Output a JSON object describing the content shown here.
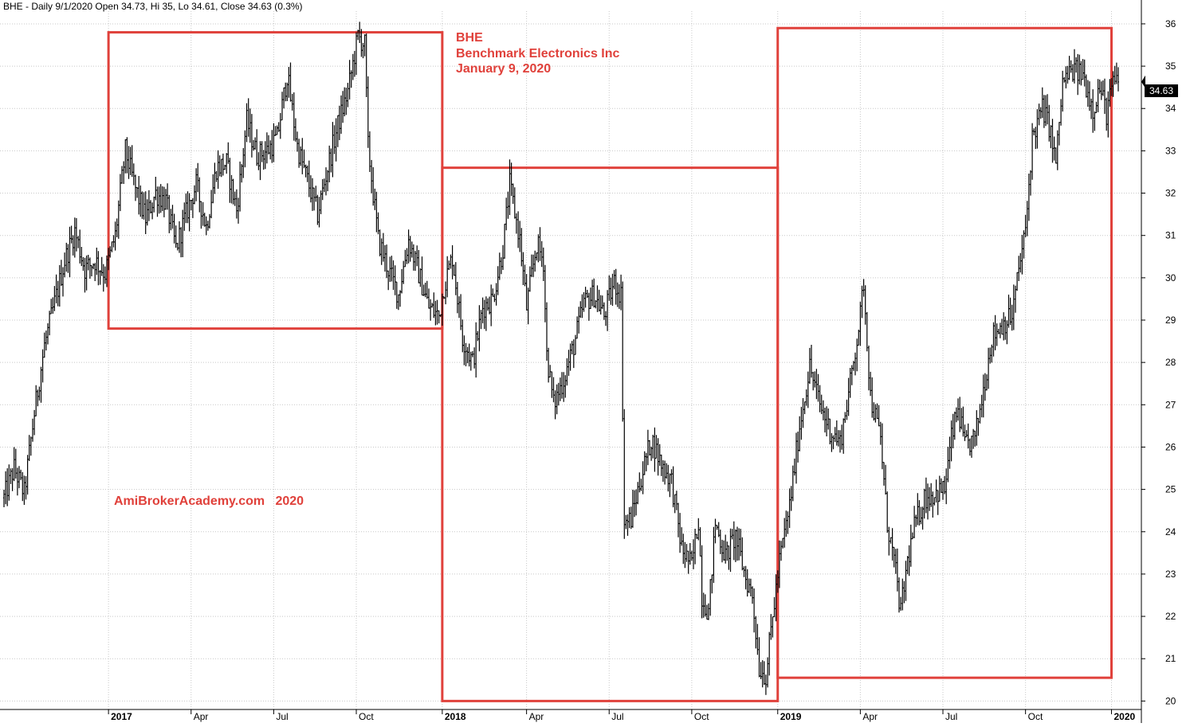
{
  "header": {
    "text": "BHE - Daily 9/1/2020 Open 34.73, Hi 35, Lo 34.61, Close 34.63 (0.3%)"
  },
  "annotation": {
    "symbol": "BHE",
    "company": "Benchmark Electronics Inc",
    "date": "January 9, 2020",
    "watermark": "AmiBrokerAcademy.com   2020"
  },
  "last_price_label": "34.63",
  "colors": {
    "price": "#000000",
    "box": "#e0413b",
    "grid": "#c8c8c8",
    "annotation": "#e0413b"
  },
  "chart_data": {
    "type": "line",
    "title": "BHE",
    "ylim": [
      19.8,
      36.3
    ],
    "yticks": [
      20,
      21,
      22,
      23,
      24,
      25,
      26,
      27,
      28,
      29,
      30,
      31,
      32,
      33,
      34,
      35,
      36
    ],
    "y_axis_side": "right",
    "xticks": [
      {
        "label": "2017",
        "idx": 132,
        "bold": true
      },
      {
        "label": "Apr",
        "idx": 181
      },
      {
        "label": "Jul",
        "idx": 230
      },
      {
        "label": "Oct",
        "idx": 279
      },
      {
        "label": "2018",
        "idx": 330,
        "bold": true
      },
      {
        "label": "Apr",
        "idx": 380
      },
      {
        "label": "Jul",
        "idx": 429
      },
      {
        "label": "Oct",
        "idx": 478
      },
      {
        "label": "2019",
        "idx": 529,
        "bold": true
      },
      {
        "label": "Apr",
        "idx": 578
      },
      {
        "label": "Jul",
        "idx": 627
      },
      {
        "label": "Oct",
        "idx": 676
      },
      {
        "label": "2020",
        "idx": 727,
        "bold": true
      }
    ],
    "x_range": [
      70,
      740
    ],
    "series": [
      {
        "anchors": [
          [
            70,
            24.8
          ],
          [
            76,
            25.5
          ],
          [
            82,
            24.9
          ],
          [
            88,
            26.8
          ],
          [
            94,
            28.4
          ],
          [
            100,
            29.4
          ],
          [
            106,
            30.4
          ],
          [
            112,
            31.1
          ],
          [
            118,
            30.2
          ],
          [
            124,
            30.4
          ],
          [
            130,
            30.1
          ],
          [
            136,
            31.0
          ],
          [
            142,
            33.0
          ],
          [
            148,
            32.1
          ],
          [
            154,
            31.4
          ],
          [
            160,
            32.0
          ],
          [
            166,
            31.8
          ],
          [
            172,
            30.7
          ],
          [
            178,
            31.5
          ],
          [
            184,
            32.2
          ],
          [
            190,
            31.2
          ],
          [
            196,
            32.6
          ],
          [
            202,
            32.7
          ],
          [
            208,
            31.6
          ],
          [
            214,
            33.7
          ],
          [
            220,
            32.9
          ],
          [
            226,
            33.0
          ],
          [
            232,
            33.3
          ],
          [
            238,
            34.8
          ],
          [
            244,
            33.1
          ],
          [
            250,
            32.3
          ],
          [
            256,
            31.5
          ],
          [
            262,
            32.6
          ],
          [
            268,
            33.6
          ],
          [
            274,
            34.4
          ],
          [
            280,
            35.7
          ],
          [
            284,
            35.5
          ],
          [
            286,
            33.1
          ],
          [
            292,
            30.9
          ],
          [
            298,
            30.2
          ],
          [
            304,
            29.6
          ],
          [
            310,
            30.9
          ],
          [
            316,
            30.1
          ],
          [
            322,
            29.3
          ],
          [
            328,
            29.1
          ],
          [
            331,
            29.8
          ],
          [
            336,
            30.5
          ],
          [
            342,
            28.6
          ],
          [
            348,
            28.0
          ],
          [
            354,
            29.3
          ],
          [
            360,
            29.5
          ],
          [
            366,
            30.7
          ],
          [
            370,
            32.2
          ],
          [
            376,
            30.9
          ],
          [
            380,
            29.3
          ],
          [
            386,
            30.8
          ],
          [
            390,
            30.4
          ],
          [
            392,
            28.2
          ],
          [
            396,
            27.0
          ],
          [
            402,
            27.6
          ],
          [
            408,
            28.4
          ],
          [
            414,
            29.4
          ],
          [
            420,
            29.6
          ],
          [
            426,
            29.1
          ],
          [
            432,
            29.9
          ],
          [
            436,
            29.6
          ],
          [
            438,
            24.2
          ],
          [
            442,
            24.3
          ],
          [
            448,
            25.3
          ],
          [
            454,
            26.2
          ],
          [
            460,
            25.6
          ],
          [
            466,
            25.2
          ],
          [
            472,
            23.6
          ],
          [
            478,
            23.2
          ],
          [
            482,
            24.3
          ],
          [
            484,
            22.5
          ],
          [
            488,
            22.1
          ],
          [
            492,
            24.2
          ],
          [
            498,
            23.4
          ],
          [
            504,
            23.9
          ],
          [
            510,
            22.9
          ],
          [
            514,
            22.5
          ],
          [
            518,
            20.8
          ],
          [
            522,
            20.6
          ],
          [
            526,
            22.0
          ],
          [
            530,
            23.3
          ],
          [
            536,
            24.6
          ],
          [
            542,
            26.5
          ],
          [
            548,
            27.9
          ],
          [
            554,
            27.0
          ],
          [
            560,
            26.4
          ],
          [
            566,
            26.1
          ],
          [
            572,
            27.5
          ],
          [
            578,
            29.1
          ],
          [
            580,
            29.9
          ],
          [
            584,
            27.2
          ],
          [
            590,
            26.2
          ],
          [
            594,
            24.2
          ],
          [
            598,
            23.3
          ],
          [
            602,
            22.1
          ],
          [
            606,
            23.3
          ],
          [
            610,
            24.1
          ],
          [
            616,
            24.8
          ],
          [
            622,
            24.9
          ],
          [
            628,
            25.0
          ],
          [
            632,
            26.2
          ],
          [
            636,
            26.9
          ],
          [
            640,
            26.0
          ],
          [
            646,
            26.2
          ],
          [
            652,
            27.6
          ],
          [
            656,
            28.6
          ],
          [
            662,
            28.9
          ],
          [
            668,
            29.1
          ],
          [
            672,
            30.2
          ],
          [
            676,
            31.1
          ],
          [
            680,
            33.3
          ],
          [
            686,
            34.0
          ],
          [
            690,
            33.6
          ],
          [
            694,
            32.7
          ],
          [
            698,
            34.6
          ],
          [
            704,
            34.9
          ],
          [
            710,
            34.8
          ],
          [
            716,
            34.0
          ],
          [
            720,
            34.5
          ],
          [
            724,
            33.9
          ],
          [
            728,
            34.6
          ],
          [
            732,
            34.6
          ]
        ]
      }
    ],
    "boxes": [
      {
        "x0": 132,
        "x1": 330,
        "y0": 28.8,
        "y1": 35.8
      },
      {
        "x0": 330,
        "x1": 529,
        "y0": 20.0,
        "y1": 32.6
      },
      {
        "x0": 529,
        "x1": 727,
        "y0": 20.55,
        "y1": 35.9
      }
    ]
  }
}
